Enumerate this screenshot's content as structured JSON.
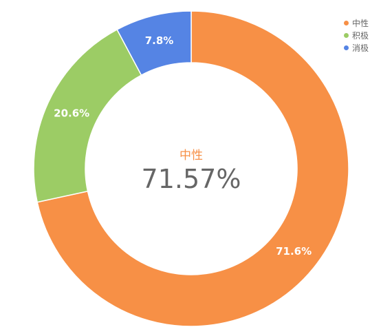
{
  "chart_data": {
    "type": "pie",
    "variant": "donut",
    "categories": [
      "中性",
      "积极",
      "消极"
    ],
    "values": [
      71.57,
      20.6,
      7.8
    ],
    "slice_labels": [
      "71.6%",
      "20.6%",
      "7.8%"
    ],
    "colors": [
      "#f79046",
      "#9ccc65",
      "#5584e4"
    ],
    "center": {
      "name": "中性",
      "value": "71.57%",
      "name_color": "#f79046"
    },
    "legend": {
      "placement": "top-right",
      "items": [
        "中性",
        "积极",
        "消极"
      ]
    }
  }
}
